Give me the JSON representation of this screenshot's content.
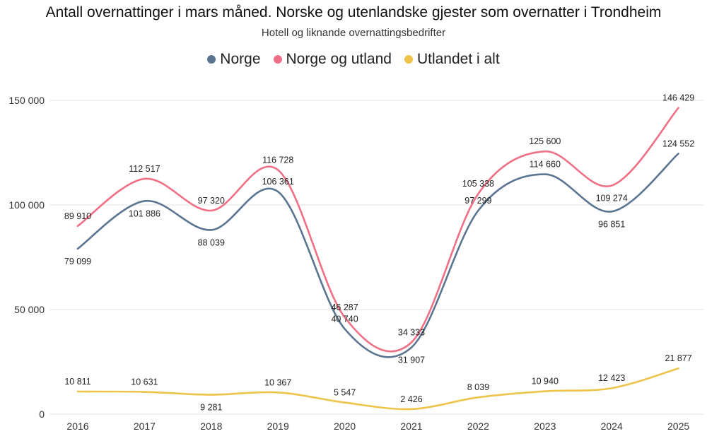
{
  "chart_data": {
    "type": "line",
    "title": "Antall overnattinger i mars måned. Norske og utenlandske gjester som overnatter i Trondheim",
    "subtitle": "Hotell og liknande overnattingsbedrifter",
    "categories": [
      "2016",
      "2017",
      "2018",
      "2019",
      "2020",
      "2021",
      "2022",
      "2023",
      "2024",
      "2025"
    ],
    "y_ticks": [
      "0",
      "50 000",
      "100 000",
      "150 000"
    ],
    "ylim": [
      0,
      150000
    ],
    "grid": true,
    "legend_position": "top-center",
    "series": [
      {
        "name": "Norge",
        "color": "#5a7591",
        "values": [
          79099,
          101886,
          88039,
          106361,
          40740,
          31907,
          97299,
          114660,
          96851,
          124552
        ],
        "labels": [
          "79 099",
          "101 886",
          "88 039",
          "106 361",
          "40 740",
          "31 907",
          "97 299",
          "114 660",
          "96 851",
          "124 552"
        ]
      },
      {
        "name": "Norge og utland",
        "color": "#ef6f86",
        "values": [
          89910,
          112517,
          97320,
          116728,
          46287,
          34333,
          105338,
          125600,
          109274,
          146429
        ],
        "labels": [
          "89 910",
          "112 517",
          "97 320",
          "116 728",
          "46 287",
          "34 333",
          "105 338",
          "125 600",
          "109 274",
          "146 429"
        ]
      },
      {
        "name": "Utlandet i alt",
        "color": "#eec34a",
        "values": [
          10811,
          10631,
          9281,
          10367,
          5547,
          2426,
          8039,
          10940,
          12423,
          21877
        ],
        "labels": [
          "10 811",
          "10 631",
          "9 281",
          "10 367",
          "5 547",
          "2 426",
          "8 039",
          "10 940",
          "12 423",
          "21 877"
        ]
      }
    ]
  }
}
